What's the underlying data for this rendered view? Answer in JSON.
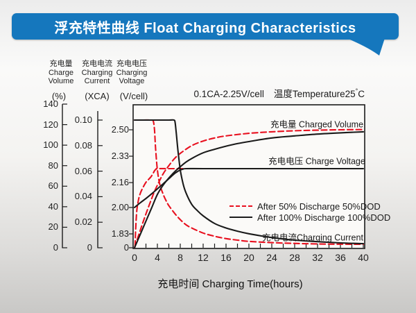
{
  "colors": {
    "banner_blue": "#1577bd",
    "curve_red": "#e8101f",
    "curve_black": "#1a1a1a"
  },
  "chart_data": {
    "type": "line",
    "title": "浮充特性曲线 Float Charging Characteristics",
    "condition_label": "0.1CA-2.25V/cell",
    "temperature_label": {
      "prefix": "温度Temperature25",
      "degree": "°",
      "unit": "C"
    },
    "x_axis": {
      "title": "充电时间 Charging Time(hours)",
      "range": [
        0,
        40
      ],
      "ticks": [
        0,
        4,
        8,
        12,
        16,
        20,
        24,
        28,
        32,
        36,
        40
      ],
      "minor_tick_step": 2
    },
    "y_axes": [
      {
        "id": "pct",
        "header": [
          "充电量",
          "Charge",
          "Volume"
        ],
        "unit": "(%)",
        "range": [
          0,
          140
        ],
        "ticks": [
          {
            "v": 0,
            "label": "0"
          },
          {
            "v": 20,
            "label": "20"
          },
          {
            "v": 40,
            "label": "40"
          },
          {
            "v": 60,
            "label": "60"
          },
          {
            "v": 80,
            "label": "80"
          },
          {
            "v": 100,
            "label": "100"
          },
          {
            "v": 120,
            "label": "120"
          },
          {
            "v": 140,
            "label": "140"
          }
        ]
      },
      {
        "id": "xca",
        "header": [
          "充电电流",
          "Charging",
          "Current"
        ],
        "unit": "(XCA)",
        "range": [
          0,
          0.11
        ],
        "ticks": [
          {
            "v": 0,
            "label": "0"
          },
          {
            "v": 0.02,
            "label": "0.02"
          },
          {
            "v": 0.04,
            "label": "0.04"
          },
          {
            "v": 0.06,
            "label": "0.06"
          },
          {
            "v": 0.08,
            "label": "0.08"
          },
          {
            "v": 0.1,
            "label": "0.10"
          }
        ]
      },
      {
        "id": "vcell",
        "header": [
          "充电电压",
          "Charging",
          "Voltage"
        ],
        "unit": "(V/cell)",
        "range": [
          1.83,
          2.5
        ],
        "axis_break": true,
        "ticks": [
          {
            "v": null,
            "label": "0"
          },
          {
            "v": 1.83,
            "label": "1.83"
          },
          {
            "v": 2.0,
            "label": "2.00"
          },
          {
            "v": 2.16,
            "label": "2.16"
          },
          {
            "v": 2.33,
            "label": "2.33"
          },
          {
            "v": 2.5,
            "label": "2.50"
          }
        ]
      }
    ],
    "curve_labels": [
      {
        "text": "充电量 Charged Volume"
      },
      {
        "text": "充电电压 Charge Voltage"
      },
      {
        "text": "充电电流Charging Current"
      }
    ],
    "legend": [
      {
        "label": "After 50% Discharge 50%DOD",
        "color": "#e8101f",
        "dash": true
      },
      {
        "label": "After 100%  Discharge 100%DOD",
        "color": "#1a1a1a",
        "dash": false
      }
    ],
    "series": [
      {
        "name": "charged-volume-50dod",
        "axis": "pct",
        "color": "#e8101f",
        "dash": true,
        "points": [
          [
            0,
            0
          ],
          [
            1,
            17
          ],
          [
            2,
            33
          ],
          [
            3,
            48
          ],
          [
            3.5,
            55
          ],
          [
            4,
            61
          ],
          [
            5,
            72
          ],
          [
            6,
            80
          ],
          [
            7,
            87
          ],
          [
            8,
            92
          ],
          [
            10,
            99.5
          ],
          [
            12,
            104
          ],
          [
            14,
            107
          ],
          [
            16,
            109
          ],
          [
            20,
            111.5
          ],
          [
            24,
            113
          ],
          [
            28,
            114
          ],
          [
            32,
            114.6
          ],
          [
            36,
            115
          ],
          [
            40,
            115.2
          ]
        ]
      },
      {
        "name": "charge-voltage-50dod",
        "axis": "vcell",
        "color": "#e8101f",
        "dash": true,
        "points": [
          [
            0.1,
            1.75
          ],
          [
            0.2,
            1.86
          ],
          [
            0.4,
            1.98
          ],
          [
            0.7,
            2.05
          ],
          [
            1,
            2.09
          ],
          [
            1.5,
            2.13
          ],
          [
            2,
            2.162
          ],
          [
            2.5,
            2.182
          ],
          [
            2.8,
            2.194
          ],
          [
            3,
            2.204
          ],
          [
            3.2,
            2.216
          ],
          [
            3.4,
            2.23
          ],
          [
            3.6,
            2.241
          ],
          [
            3.8,
            2.247
          ],
          [
            4,
            2.25
          ],
          [
            6,
            2.25
          ],
          [
            8.7,
            2.25
          ]
        ]
      },
      {
        "name": "charging-current-50dod",
        "axis": "xca",
        "color": "#e8101f",
        "dash": true,
        "points": [
          [
            0,
            0.1
          ],
          [
            1.5,
            0.1
          ],
          [
            3,
            0.1
          ],
          [
            3.3,
            0.099
          ],
          [
            3.5,
            0.092
          ],
          [
            3.7,
            0.077
          ],
          [
            4,
            0.061
          ],
          [
            4.4,
            0.05
          ],
          [
            5,
            0.042
          ],
          [
            5.5,
            0.037
          ],
          [
            6,
            0.033
          ],
          [
            7,
            0.027
          ],
          [
            8,
            0.022
          ],
          [
            9,
            0.018
          ],
          [
            10,
            0.0155
          ],
          [
            12,
            0.0115
          ],
          [
            14,
            0.009
          ],
          [
            16,
            0.0072
          ],
          [
            18,
            0.006
          ],
          [
            20,
            0.005
          ],
          [
            24,
            0.004
          ],
          [
            28,
            0.0034
          ],
          [
            32,
            0.003
          ],
          [
            36,
            0.0028
          ],
          [
            40,
            0.0027
          ]
        ]
      },
      {
        "name": "charged-volume-100dod",
        "axis": "pct",
        "color": "#1a1a1a",
        "dash": false,
        "points": [
          [
            0,
            0
          ],
          [
            1,
            13
          ],
          [
            2,
            26
          ],
          [
            3,
            39
          ],
          [
            4,
            52
          ],
          [
            5,
            61
          ],
          [
            6,
            68
          ],
          [
            7,
            74
          ],
          [
            8,
            79
          ],
          [
            9,
            83.5
          ],
          [
            10,
            87
          ],
          [
            12,
            92.5
          ],
          [
            14,
            96
          ],
          [
            16,
            99
          ],
          [
            18,
            101.5
          ],
          [
            20,
            103.5
          ],
          [
            24,
            107
          ],
          [
            28,
            109
          ],
          [
            32,
            110.8
          ],
          [
            36,
            112
          ],
          [
            40,
            113
          ]
        ]
      },
      {
        "name": "charge-voltage-100dod",
        "axis": "vcell",
        "color": "#1a1a1a",
        "dash": false,
        "points": [
          [
            0,
            2.0
          ],
          [
            0.5,
            2.015
          ],
          [
            1,
            2.03
          ],
          [
            2,
            2.058
          ],
          [
            3,
            2.088
          ],
          [
            4,
            2.12
          ],
          [
            5,
            2.152
          ],
          [
            6,
            2.185
          ],
          [
            6.5,
            2.202
          ],
          [
            7,
            2.218
          ],
          [
            7.5,
            2.231
          ],
          [
            8,
            2.241
          ],
          [
            8.5,
            2.247
          ],
          [
            9,
            2.25
          ],
          [
            12,
            2.25
          ],
          [
            20,
            2.25
          ],
          [
            30,
            2.25
          ],
          [
            40,
            2.25
          ]
        ]
      },
      {
        "name": "charging-current-100dod",
        "axis": "xca",
        "color": "#1a1a1a",
        "dash": false,
        "points": [
          [
            0,
            0.1
          ],
          [
            3,
            0.1
          ],
          [
            6,
            0.1
          ],
          [
            6.9,
            0.1
          ],
          [
            7.1,
            0.098
          ],
          [
            7.3,
            0.09
          ],
          [
            7.6,
            0.076
          ],
          [
            8,
            0.061
          ],
          [
            8.5,
            0.05
          ],
          [
            9,
            0.043
          ],
          [
            10,
            0.034
          ],
          [
            11,
            0.029
          ],
          [
            12,
            0.025
          ],
          [
            14,
            0.019
          ],
          [
            16,
            0.0155
          ],
          [
            18,
            0.013
          ],
          [
            20,
            0.011
          ],
          [
            24,
            0.008
          ],
          [
            28,
            0.006
          ],
          [
            32,
            0.0048
          ],
          [
            36,
            0.0038
          ],
          [
            40,
            0.0032
          ]
        ]
      }
    ]
  }
}
